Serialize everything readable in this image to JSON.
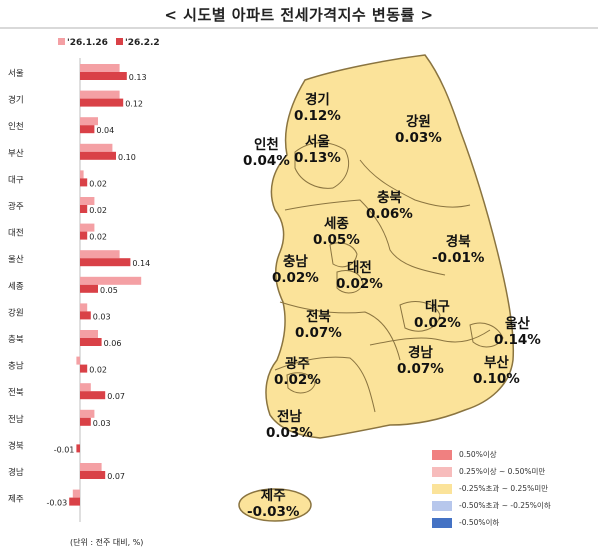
{
  "title": "< 시도별 아파트 전세가격지수 변동률 >",
  "unit_note": "(단위 : 전주 대비, %)",
  "colors": {
    "series_prev": "#f4a0a4",
    "series_curr": "#d94147",
    "map_fill": "#fbe39a",
    "map_stroke": "#8a7440"
  },
  "chart_data": {
    "type": "bar",
    "orientation": "horizontal",
    "categories": [
      "서울",
      "경기",
      "인천",
      "부산",
      "대구",
      "광주",
      "대전",
      "울산",
      "세종",
      "강원",
      "충북",
      "충남",
      "전북",
      "전남",
      "경북",
      "경남",
      "제주"
    ],
    "series": [
      {
        "name": "'26.1.26",
        "values": [
          0.11,
          0.11,
          0.05,
          0.09,
          0.01,
          0.04,
          0.04,
          0.11,
          0.17,
          0.02,
          0.05,
          -0.01,
          0.03,
          0.04,
          0.0,
          0.06,
          -0.02
        ]
      },
      {
        "name": "'26.2.2",
        "values": [
          0.13,
          0.12,
          0.04,
          0.1,
          0.02,
          0.02,
          0.02,
          0.14,
          0.05,
          0.03,
          0.06,
          0.02,
          0.07,
          0.03,
          -0.01,
          0.07,
          -0.03
        ]
      }
    ],
    "data_labels": [
      "0.13",
      "0.12",
      "0.04",
      "0.10",
      "0.02",
      "0.02",
      "0.02",
      "0.14",
      "0.05",
      "0.03",
      "0.06",
      "0.02",
      "0.07",
      "0.03",
      "-0.01",
      "0.07",
      "-0.03"
    ],
    "xlim": [
      -0.04,
      0.18
    ],
    "legend": "top"
  },
  "map_labels": [
    {
      "name": "경기",
      "value": "0.12%"
    },
    {
      "name": "인천",
      "value": "0.04%"
    },
    {
      "name": "서울",
      "value": "0.13%"
    },
    {
      "name": "강원",
      "value": "0.03%"
    },
    {
      "name": "충북",
      "value": "0.06%"
    },
    {
      "name": "세종",
      "value": "0.05%"
    },
    {
      "name": "충남",
      "value": "0.02%"
    },
    {
      "name": "대전",
      "value": "0.02%"
    },
    {
      "name": "경북",
      "value": "-0.01%"
    },
    {
      "name": "전북",
      "value": "0.07%"
    },
    {
      "name": "대구",
      "value": "0.02%"
    },
    {
      "name": "울산",
      "value": "0.14%"
    },
    {
      "name": "광주",
      "value": "0.02%"
    },
    {
      "name": "경남",
      "value": "0.07%"
    },
    {
      "name": "부산",
      "value": "0.10%"
    },
    {
      "name": "전남",
      "value": "0.03%"
    },
    {
      "name": "제주",
      "value": "-0.03%"
    }
  ],
  "legend_items": [
    {
      "label": "0.50%이상",
      "color": "#f08080"
    },
    {
      "label": "0.25%이상 ~ 0.50%미만",
      "color": "#f7bcbc"
    },
    {
      "label": "-0.25%초과 ~ 0.25%미만",
      "color": "#fbe39a"
    },
    {
      "label": "-0.50%초과 ~ -0.25%이하",
      "color": "#b7c7ec"
    },
    {
      "label": "-0.50%이하",
      "color": "#4472c4"
    }
  ]
}
